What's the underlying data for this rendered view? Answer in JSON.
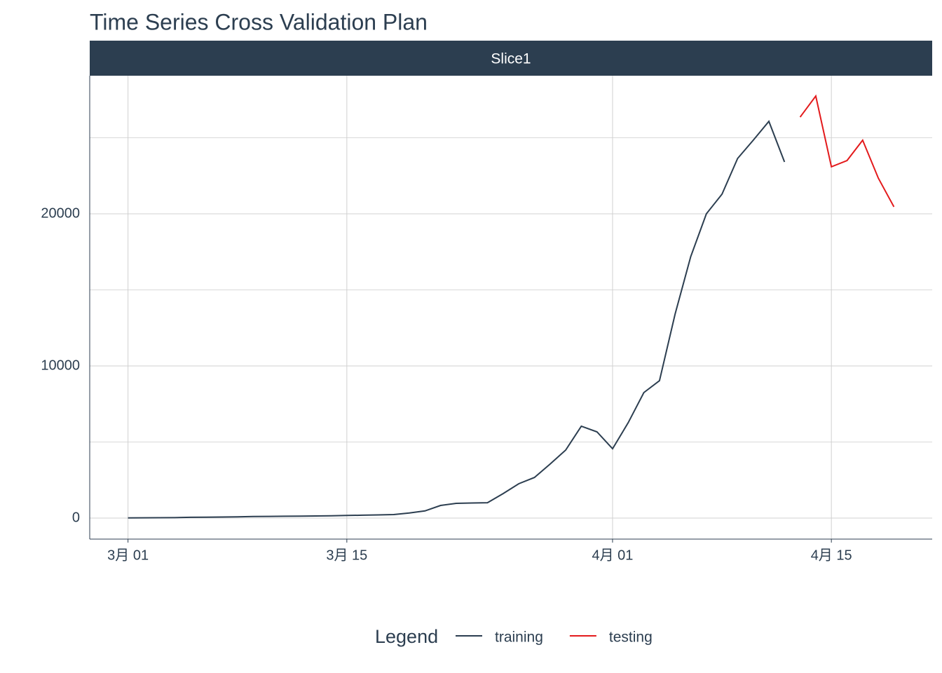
{
  "chart_data": {
    "type": "line",
    "title": "Time Series Cross Validation Plan",
    "facet": "Slice1",
    "x": [
      "3月 01",
      "3月 02",
      "3月 03",
      "3月 04",
      "3月 05",
      "3月 06",
      "3月 07",
      "3月 08",
      "3月 09",
      "3月 10",
      "3月 11",
      "3月 12",
      "3月 13",
      "3月 14",
      "3月 15",
      "3月 16",
      "3月 17",
      "3月 18",
      "3月 19",
      "3月 20",
      "3月 21",
      "3月 22",
      "3月 23",
      "3月 24",
      "3月 25",
      "3月 26",
      "3月 27",
      "3月 28",
      "3月 29",
      "3月 30",
      "3月 31",
      "4月 01",
      "4月 02",
      "4月 03",
      "4月 04",
      "4月 05",
      "4月 06",
      "4月 07",
      "4月 08",
      "4月 09",
      "4月 10",
      "4月 11",
      "4月 12",
      "4月 13",
      "4月 14",
      "4月 15",
      "4月 16",
      "4月 17",
      "4月 18",
      "4月 19"
    ],
    "series": [
      {
        "name": "training",
        "color": "#2c3e50",
        "values": [
          14,
          20,
          25,
          30,
          50,
          60,
          70,
          80,
          100,
          110,
          120,
          130,
          140,
          150,
          170,
          190,
          210,
          230,
          330,
          470,
          830,
          970,
          990,
          1010,
          1610,
          2260,
          2670,
          3550,
          4470,
          6040,
          5670,
          4560,
          6270,
          8250,
          9030,
          13410,
          17190,
          20000,
          21290,
          23640,
          24840,
          26080,
          23410,
          null,
          null,
          null,
          null,
          null,
          null,
          null
        ]
      },
      {
        "name": "testing",
        "color": "#e31a1c",
        "values": [
          null,
          null,
          null,
          null,
          null,
          null,
          null,
          null,
          null,
          null,
          null,
          null,
          null,
          null,
          null,
          null,
          null,
          null,
          null,
          null,
          null,
          null,
          null,
          null,
          null,
          null,
          null,
          null,
          null,
          null,
          null,
          null,
          null,
          null,
          null,
          null,
          null,
          null,
          null,
          null,
          null,
          null,
          null,
          26360,
          27740,
          23090,
          23500,
          24840,
          22350,
          20460
        ]
      }
    ],
    "xlim": [
      "3月 01",
      "4月 19"
    ],
    "xticks": [
      "3月 01",
      "3月 15",
      "4月 01",
      "4月 15"
    ],
    "ylim": [
      -1382,
      29078
    ],
    "yticks": [
      0,
      10000,
      20000
    ],
    "yminorticks": [
      5000,
      15000,
      25000
    ],
    "grid": true,
    "legend_title": "Legend",
    "legend": "bottom"
  }
}
